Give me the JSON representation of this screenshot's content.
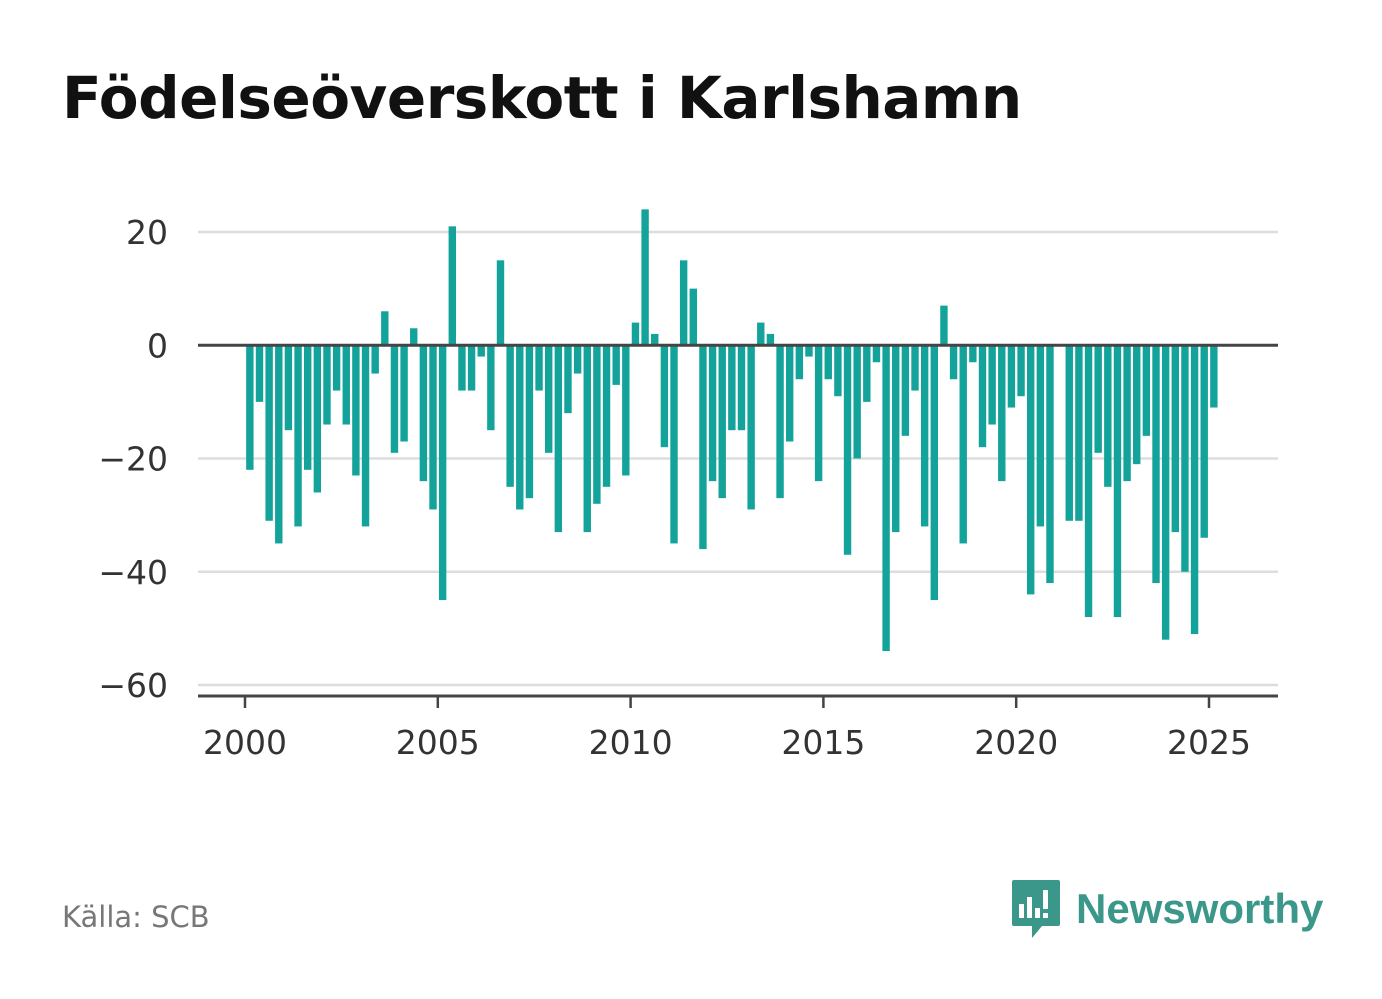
{
  "title": "Födelseöverskott i Karlshamn",
  "source": "Källa: SCB",
  "brand": {
    "name": "Newsworthy",
    "color": "#3b978a",
    "icon": "newsworthy-logo-icon"
  },
  "colors": {
    "bar": "#14a39a",
    "grid": "#dddddd",
    "axis": "#444444"
  },
  "chart_data": {
    "type": "bar",
    "title": "Födelseöverskott i Karlshamn",
    "xlabel": "",
    "ylabel": "",
    "grid": true,
    "legend": "none",
    "ylim": [
      -60,
      20
    ],
    "xlim": [
      1999.4,
      2026.9
    ],
    "yticks": [
      20,
      0,
      -20,
      -40,
      -60
    ],
    "ytick_labels": [
      "20",
      "0",
      "−20",
      "−40",
      "−60"
    ],
    "xticks": [
      2000,
      2005,
      2010,
      2015,
      2020,
      2025
    ],
    "xtick_labels": [
      "2000",
      "2005",
      "2010",
      "2015",
      "2020",
      "2025"
    ],
    "start": "2000-01",
    "frequency": "quarterly",
    "values": [
      -22,
      -10,
      -31,
      -35,
      -15,
      -32,
      -22,
      -26,
      -14,
      -8,
      -14,
      -23,
      -32,
      -5,
      6,
      -19,
      -17,
      3,
      -24,
      -29,
      -45,
      21,
      -8,
      -8,
      -2,
      -15,
      15,
      -25,
      -29,
      -27,
      -8,
      -19,
      -33,
      -12,
      -5,
      -33,
      -28,
      -25,
      -7,
      -23,
      4,
      24,
      2,
      -18,
      -35,
      15,
      10,
      -36,
      -24,
      -27,
      -15,
      -15,
      -29,
      4,
      2,
      -27,
      -17,
      -6,
      -2,
      -24,
      -6,
      -9,
      -37,
      -20,
      -10,
      -3,
      -54,
      -33,
      -16,
      -8,
      -32,
      -45,
      7,
      -6,
      -35,
      -3,
      -18,
      -14,
      -24,
      -11,
      -9,
      -44,
      -32,
      -42,
      0,
      -31,
      -31,
      -48,
      -19,
      -25,
      -48,
      -24,
      -21,
      -16,
      -42,
      -52,
      -33,
      -40,
      -51,
      -34,
      -11
    ]
  }
}
